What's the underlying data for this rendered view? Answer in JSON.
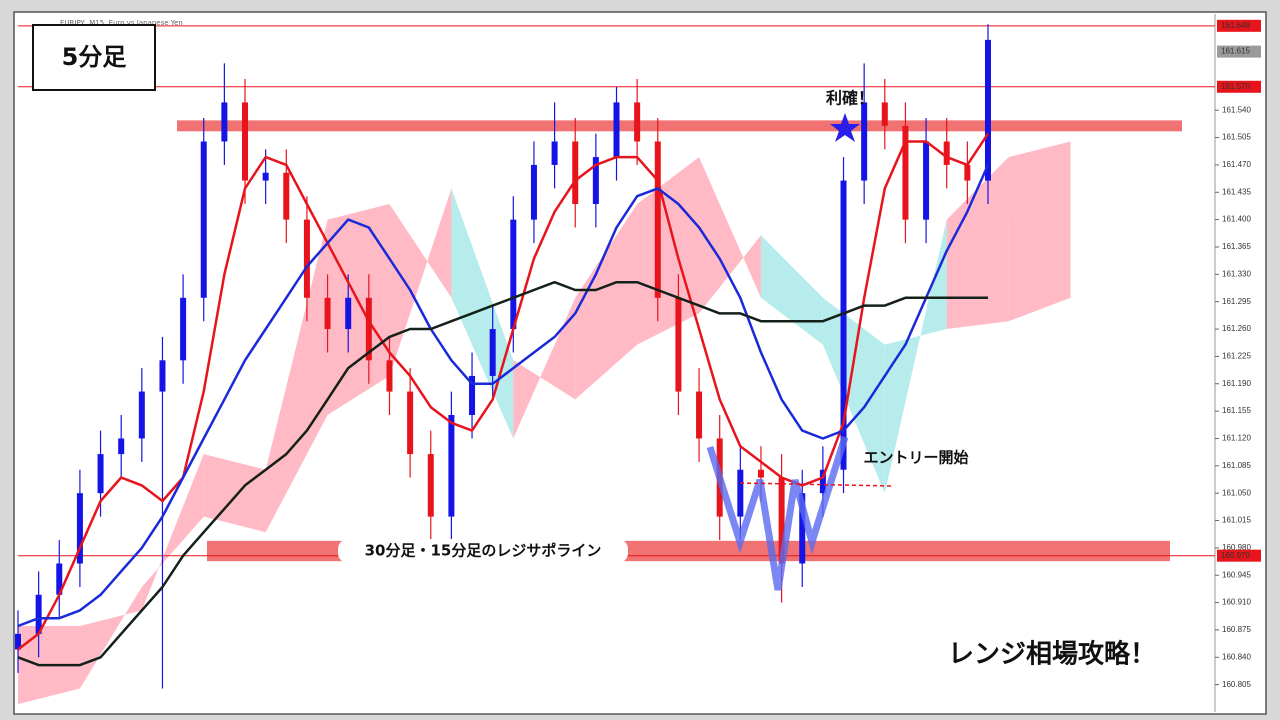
{
  "chart_data": {
    "type": "candlestick",
    "header": "EURJPY, M15, Euro vs Japanese Yen",
    "timeframe_label": "5分足",
    "take_profit_label": "利確！",
    "entry_label": "エントリー開始",
    "support_label": "30分足・15分足のレジサポライン",
    "headline": "レンジ相場攻略！",
    "ylim": [
      160.77,
      161.658
    ],
    "xlim": [
      0,
      58
    ],
    "yticks": [
      {
        "value": 161.54,
        "label": "161.540"
      },
      {
        "value": 161.505,
        "label": "161.505"
      },
      {
        "value": 161.47,
        "label": "161.470"
      },
      {
        "value": 161.435,
        "label": "161.435"
      },
      {
        "value": 161.4,
        "label": "161.400"
      },
      {
        "value": 161.365,
        "label": "161.365"
      },
      {
        "value": 161.33,
        "label": "161.330"
      },
      {
        "value": 161.295,
        "label": "161.295"
      },
      {
        "value": 161.26,
        "label": "161.260"
      },
      {
        "value": 161.225,
        "label": "161.225"
      },
      {
        "value": 161.19,
        "label": "161.190"
      },
      {
        "value": 161.155,
        "label": "161.155"
      },
      {
        "value": 161.12,
        "label": "161.120"
      },
      {
        "value": 161.085,
        "label": "161.085"
      },
      {
        "value": 161.05,
        "label": "161.050"
      },
      {
        "value": 161.015,
        "label": "161.015"
      },
      {
        "value": 160.98,
        "label": "160.980"
      },
      {
        "value": 160.945,
        "label": "160.945"
      },
      {
        "value": 160.91,
        "label": "160.910"
      },
      {
        "value": 160.875,
        "label": "160.875"
      },
      {
        "value": 160.84,
        "label": "160.840"
      },
      {
        "value": 160.805,
        "label": "160.805"
      }
    ],
    "price_markers": [
      {
        "value": 161.648,
        "label": "161.648",
        "color": "#e8141b",
        "line": true
      },
      {
        "value": 161.615,
        "label": "161.615",
        "color": "#9a9a9a",
        "line": false
      },
      {
        "value": 161.57,
        "label": "161.570",
        "color": "#e8141b",
        "line": true
      },
      {
        "value": 160.97,
        "label": "160.970",
        "color": "#e8141b",
        "line": true
      }
    ],
    "zones": [
      {
        "name": "resistance",
        "from": 161.513,
        "to": 161.527,
        "color": "#f06a6a"
      },
      {
        "name": "support",
        "from": 160.963,
        "to": 160.989,
        "color": "#f06a6a"
      }
    ],
    "up_color": "#1414e6",
    "down_color": "#e8141b",
    "x": [
      0,
      1,
      2,
      3,
      4,
      5,
      6,
      7,
      8,
      9,
      10,
      11,
      12,
      13,
      14,
      15,
      16,
      17,
      18,
      19,
      20,
      21,
      22,
      23,
      24,
      25,
      26,
      27,
      28,
      29,
      30,
      31,
      32,
      33,
      34,
      35,
      36,
      37,
      38,
      39,
      40,
      41,
      42,
      43,
      44,
      45,
      46,
      47
    ],
    "open": [
      160.85,
      160.87,
      160.92,
      160.96,
      161.05,
      161.1,
      161.12,
      161.18,
      161.22,
      161.3,
      161.5,
      161.55,
      161.45,
      161.46,
      161.4,
      161.3,
      161.26,
      161.3,
      161.22,
      161.18,
      161.1,
      161.02,
      161.15,
      161.2,
      161.26,
      161.4,
      161.47,
      161.5,
      161.42,
      161.48,
      161.55,
      161.5,
      161.3,
      161.18,
      161.12,
      161.02,
      161.08,
      161.07,
      160.96,
      161.05,
      161.08,
      161.45,
      161.55,
      161.52,
      161.4,
      161.5,
      161.47,
      161.45
    ],
    "high": [
      160.9,
      160.95,
      160.99,
      161.08,
      161.13,
      161.15,
      161.21,
      161.25,
      161.33,
      161.53,
      161.6,
      161.58,
      161.49,
      161.49,
      161.43,
      161.33,
      161.33,
      161.33,
      161.25,
      161.21,
      161.13,
      161.18,
      161.23,
      161.29,
      161.43,
      161.5,
      161.55,
      161.53,
      161.51,
      161.57,
      161.58,
      161.53,
      161.33,
      161.21,
      161.15,
      161.11,
      161.11,
      161.1,
      161.08,
      161.11,
      161.48,
      161.6,
      161.58,
      161.55,
      161.53,
      161.53,
      161.5,
      161.65
    ],
    "low": [
      160.82,
      160.84,
      160.89,
      160.93,
      161.02,
      161.07,
      161.09,
      160.8,
      161.19,
      161.27,
      161.47,
      161.42,
      161.42,
      161.37,
      161.27,
      161.23,
      161.23,
      161.19,
      161.15,
      161.07,
      160.99,
      160.99,
      161.12,
      161.17,
      161.23,
      161.37,
      161.44,
      161.39,
      161.39,
      161.45,
      161.47,
      161.27,
      161.15,
      161.09,
      160.99,
      160.99,
      161.04,
      160.91,
      160.93,
      161.02,
      161.05,
      161.42,
      161.49,
      161.37,
      161.37,
      161.44,
      161.42,
      161.42
    ],
    "close": [
      160.87,
      160.92,
      160.96,
      161.05,
      161.1,
      161.12,
      161.18,
      161.22,
      161.3,
      161.5,
      161.55,
      161.45,
      161.46,
      161.4,
      161.3,
      161.26,
      161.3,
      161.22,
      161.18,
      161.1,
      161.02,
      161.15,
      161.2,
      161.26,
      161.4,
      161.47,
      161.5,
      161.42,
      161.48,
      161.55,
      161.5,
      161.3,
      161.18,
      161.12,
      161.02,
      161.08,
      161.07,
      160.96,
      161.05,
      161.08,
      161.45,
      161.55,
      161.52,
      161.4,
      161.5,
      161.47,
      161.45,
      161.63
    ],
    "series": [
      {
        "color": "#e8141b",
        "values": [
          160.85,
          160.87,
          160.92,
          160.98,
          161.04,
          161.07,
          161.06,
          161.04,
          161.07,
          161.18,
          161.33,
          161.44,
          161.48,
          161.47,
          161.42,
          161.37,
          161.32,
          161.27,
          161.23,
          161.2,
          161.16,
          161.14,
          161.13,
          161.17,
          161.26,
          161.35,
          161.41,
          161.45,
          161.47,
          161.48,
          161.48,
          161.45,
          161.35,
          161.26,
          161.17,
          161.11,
          161.09,
          161.07,
          161.06,
          161.07,
          161.14,
          161.3,
          161.44,
          161.5,
          161.5,
          161.48,
          161.47,
          161.51
        ]
      },
      {
        "color": "#1a2ad8",
        "values": [
          160.88,
          160.89,
          160.89,
          160.9,
          160.92,
          160.95,
          160.98,
          161.02,
          161.07,
          161.12,
          161.17,
          161.22,
          161.26,
          161.3,
          161.34,
          161.37,
          161.4,
          161.39,
          161.35,
          161.31,
          161.26,
          161.22,
          161.19,
          161.19,
          161.21,
          161.23,
          161.25,
          161.28,
          161.33,
          161.39,
          161.43,
          161.44,
          161.42,
          161.39,
          161.35,
          161.3,
          161.23,
          161.17,
          161.13,
          161.12,
          161.13,
          161.16,
          161.2,
          161.24,
          161.3,
          161.36,
          161.41,
          161.47
        ]
      },
      {
        "color": "#14201a",
        "values": [
          160.84,
          160.83,
          160.83,
          160.83,
          160.84,
          160.87,
          160.9,
          160.93,
          160.97,
          161.0,
          161.03,
          161.06,
          161.08,
          161.1,
          161.13,
          161.17,
          161.21,
          161.23,
          161.25,
          161.26,
          161.26,
          161.27,
          161.28,
          161.29,
          161.3,
          161.31,
          161.32,
          161.31,
          161.31,
          161.32,
          161.32,
          161.31,
          161.3,
          161.29,
          161.28,
          161.28,
          161.27,
          161.27,
          161.27,
          161.27,
          161.28,
          161.29,
          161.29,
          161.3,
          161.3,
          161.3,
          161.3,
          161.3
        ]
      }
    ],
    "cloud": {
      "x": [
        0,
        3,
        6,
        9,
        12,
        15,
        18,
        21,
        24,
        27,
        30,
        33,
        36,
        39,
        42,
        45,
        48,
        51
      ],
      "span_a": [
        160.88,
        160.88,
        160.9,
        161.1,
        161.08,
        161.4,
        161.42,
        161.3,
        161.12,
        161.3,
        161.42,
        161.48,
        161.3,
        161.24,
        161.05,
        161.4,
        161.48,
        161.5
      ],
      "span_b": [
        160.78,
        160.8,
        160.93,
        161.02,
        161.0,
        161.15,
        161.2,
        161.44,
        161.22,
        161.17,
        161.24,
        161.28,
        161.38,
        161.3,
        161.24,
        161.26,
        161.27,
        161.3
      ],
      "bull_color": "#ffb3c0",
      "bear_color": "#aeeaea"
    }
  }
}
